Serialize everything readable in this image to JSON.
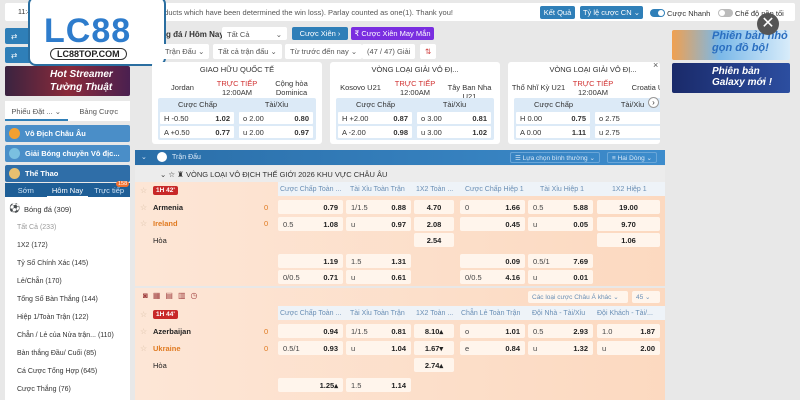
{
  "topbar": {
    "time": "11:4",
    "notice": "oducts which have been determined the win loss). Parlay counted as one(1). Thank you!",
    "results_btn": "Kết Quả",
    "odds_btn": "Tỷ lệ cược CN",
    "quick_bet": "Cược Nhanh",
    "dark_mode": "Chế độ nền tối"
  },
  "logo": {
    "text": "LC88",
    "domain": "LC88TOP.COM"
  },
  "sidebar": {
    "banner": "Hot Streamer Tường Thuật",
    "tab1": "Phiếu Đặt ...",
    "tab2": "Bảng Cược",
    "cats": [
      "Vô Địch Châu Âu",
      "Giải Bóng chuyền Vô địc...",
      "Thể Thao"
    ],
    "subtabs": [
      "Sớm",
      "Hôm Nay",
      "Trực tiếp"
    ],
    "live_count": "158",
    "sport": "Bóng đá  (309)",
    "items": [
      "Tất Cả (233)",
      "1X2  (172)",
      "Tỷ Số Chính Xác  (145)",
      "Lẻ/Chẵn  (170)",
      "Tổng Số Bàn Thắng  (144)",
      "Hiệp 1/Toàn Trận  (122)",
      "Chẵn / Lẻ của Nửa trận...  (110)",
      "Bàn thắng Đầu/ Cuối  (85)",
      "Cá Cược Tổng Hợp  (645)",
      "Cược Thắng  (76)"
    ]
  },
  "toolbar": {
    "breadcrumb": "g đá / Hôm Nay",
    "select": "Tất Cả",
    "parlay": "Cược Xiên",
    "lucky_parlay": "Cược Xiên May Mắn",
    "f1": "Trận Đấu",
    "f2": "Tất cả trận đấu",
    "f3": "Từ trước đến nay",
    "count": "(47 / 47) Giải"
  },
  "cards": [
    {
      "league": "GIAO HỮU QUỐC TẾ",
      "home": "Jordan",
      "away": "Cộng hòa Dominica",
      "status": "TRỰC TIẾP",
      "time": "12:00AM",
      "hcap": [
        [
          "H -0.50",
          "1.02"
        ],
        [
          "A +0.50",
          "0.77"
        ]
      ],
      "ou": [
        [
          "o 2.00",
          "0.80"
        ],
        [
          "u 2.00",
          "0.97"
        ]
      ]
    },
    {
      "league": "VÒNG LOẠI GIẢI VÔ ĐỊ...",
      "home": "Kosovo U21",
      "away": "Tây Ban Nha U21",
      "status": "TRỰC TIẾP",
      "time": "12:00AM",
      "hcap": [
        [
          "H +2.00",
          "0.87"
        ],
        [
          "A -2.00",
          "0.98"
        ]
      ],
      "ou": [
        [
          "o 3.00",
          "0.81"
        ],
        [
          "u 3.00",
          "1.02"
        ]
      ]
    },
    {
      "league": "VÒNG LOẠI GIẢI VÔ ĐỊ...",
      "home": "Thổ Nhĩ Kỳ U21",
      "away": "Croatia U",
      "status": "TRỰC TIẾP",
      "time": "12:00AM",
      "hcap": [
        [
          "H 0.00",
          "0.75"
        ],
        [
          "A 0.00",
          "1.11"
        ]
      ],
      "ou": [
        [
          "o 2.75",
          ""
        ],
        [
          "u 2.75",
          ""
        ]
      ]
    }
  ],
  "card_labels": {
    "hcap": "Cược Chấp",
    "ou": "Tài/Xỉu"
  },
  "ads": [
    "Phiên bản nhỏ gọn đồ bộ!",
    "Phiên bản Galaxy mới !"
  ],
  "matchbar": {
    "title": "Trận Đấu",
    "opt1": "Lựa chọn bình thường",
    "opt2": "Hai Dòng"
  },
  "league": "VÒNG LOẠI VÔ ĐỊCH THẾ GIỚI 2026 KHU VỰC CHÂU ÂU",
  "m1": {
    "badge": "1H 42'",
    "home": "Armenia",
    "away": "Ireland",
    "draw": "Hòa",
    "hs": "0",
    "as": "0",
    "cols": [
      "Cược Chấp Toàn ...",
      "Tài Xỉu Toàn Trận",
      "1X2 Toàn ...",
      "Cược Chấp Hiệp 1",
      "Tài Xỉu Hiệp 1",
      "1X2 Hiệp 1"
    ],
    "r1": [
      "",
      "0.79",
      "1/1.5",
      "0.88",
      "4.70",
      "0",
      "1.66",
      "0.5",
      "5.88",
      "19.00"
    ],
    "r2": [
      "0.5",
      "1.08",
      "u",
      "0.97",
      "2.08",
      "",
      "0.45",
      "u",
      "0.05",
      "9.70"
    ],
    "r3": "2.54",
    "r3b": "1.06",
    "r4": [
      "",
      "1.19",
      "1.5",
      "1.31",
      "",
      "0.09",
      "0.5/1",
      "7.69"
    ],
    "r5": [
      "0/0.5",
      "0.71",
      "u",
      "0.61",
      "0/0.5",
      "4.16",
      "u",
      "0.01"
    ]
  },
  "m2": {
    "badge": "1H 44'",
    "home": "Azerbaijan",
    "away": "Ukraine",
    "draw": "Hòa",
    "hs": "0",
    "as": "0",
    "more": "Các loại cược Châu Á khác",
    "num": "45",
    "cols": [
      "Cược Chấp Toàn ...",
      "Tài Xỉu Toàn Trận",
      "1X2 Toàn ...",
      "Chẵn Lẻ Toàn Trận",
      "Đội Nhà - Tài/Xỉu",
      "Đội Khách - Tài/..."
    ],
    "r1": [
      "",
      "0.94",
      "1/1.5",
      "0.81",
      "8.10▴",
      "o",
      "1.01",
      "0.5",
      "2.93",
      "1.0",
      "1.87"
    ],
    "r2": [
      "0.5/1",
      "0.93",
      "u",
      "1.04",
      "1.67▾",
      "e",
      "0.84",
      "u",
      "1.32",
      "u",
      "2.00"
    ],
    "r3": "2.74▴",
    "r4": [
      "",
      "1.25▴",
      "1.5",
      "1.14"
    ]
  },
  "colors": {
    "primary": "#2f7fb8",
    "purple": "#7a2ee0",
    "live": "#d03030",
    "orange": "#e07a20"
  }
}
